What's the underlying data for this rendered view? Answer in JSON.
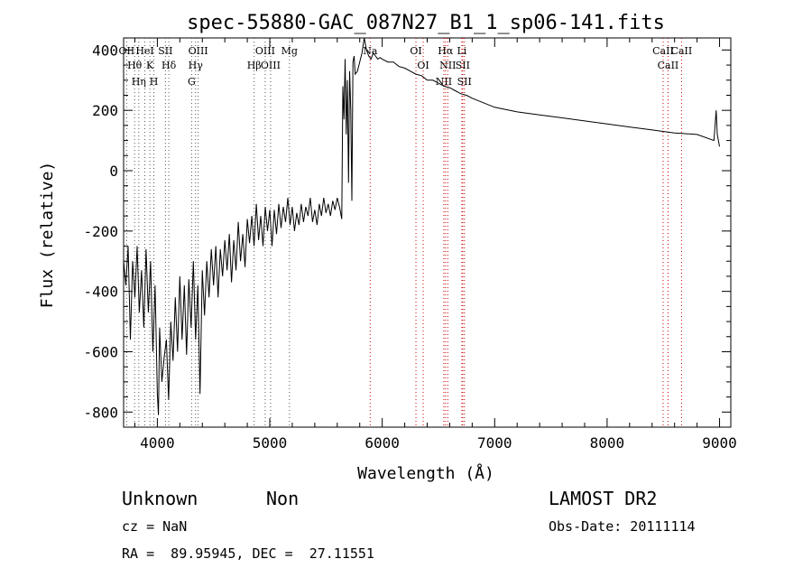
{
  "chart_data": {
    "type": "line",
    "title": "spec-55880-GAC_087N27_B1_1_sp06-141.fits",
    "xlabel": "Wavelength (Å)",
    "ylabel": "Flux (relative)",
    "xlim": [
      3700,
      9100
    ],
    "ylim": [
      -850,
      440
    ],
    "x_ticks": [
      4000,
      5000,
      6000,
      7000,
      8000,
      9000
    ],
    "y_ticks": [
      -800,
      -600,
      -400,
      -200,
      0,
      200,
      400
    ],
    "grid": false,
    "line_color": "#000000",
    "marker_color": "#cc0000",
    "series": [
      {
        "values": [
          [
            3700,
            -300
          ],
          [
            3720,
            -380
          ],
          [
            3740,
            -250
          ],
          [
            3760,
            -560
          ],
          [
            3780,
            -300
          ],
          [
            3800,
            -420
          ],
          [
            3820,
            -250
          ],
          [
            3840,
            -470
          ],
          [
            3860,
            -330
          ],
          [
            3880,
            -520
          ],
          [
            3900,
            -260
          ],
          [
            3920,
            -470
          ],
          [
            3940,
            -300
          ],
          [
            3960,
            -600
          ],
          [
            3980,
            -380
          ],
          [
            4000,
            -740
          ],
          [
            4010,
            -810
          ],
          [
            4020,
            -520
          ],
          [
            4040,
            -700
          ],
          [
            4060,
            -620
          ],
          [
            4080,
            -560
          ],
          [
            4100,
            -760
          ],
          [
            4120,
            -500
          ],
          [
            4140,
            -630
          ],
          [
            4160,
            -420
          ],
          [
            4180,
            -600
          ],
          [
            4200,
            -350
          ],
          [
            4220,
            -560
          ],
          [
            4240,
            -380
          ],
          [
            4260,
            -610
          ],
          [
            4280,
            -360
          ],
          [
            4300,
            -520
          ],
          [
            4320,
            -300
          ],
          [
            4340,
            -560
          ],
          [
            4360,
            -380
          ],
          [
            4380,
            -740
          ],
          [
            4400,
            -330
          ],
          [
            4420,
            -480
          ],
          [
            4440,
            -300
          ],
          [
            4460,
            -420
          ],
          [
            4480,
            -260
          ],
          [
            4500,
            -380
          ],
          [
            4520,
            -250
          ],
          [
            4540,
            -420
          ],
          [
            4560,
            -260
          ],
          [
            4580,
            -350
          ],
          [
            4600,
            -230
          ],
          [
            4620,
            -330
          ],
          [
            4640,
            -210
          ],
          [
            4660,
            -370
          ],
          [
            4680,
            -230
          ],
          [
            4700,
            -330
          ],
          [
            4720,
            -170
          ],
          [
            4740,
            -300
          ],
          [
            4760,
            -210
          ],
          [
            4780,
            -320
          ],
          [
            4800,
            -160
          ],
          [
            4820,
            -240
          ],
          [
            4840,
            -150
          ],
          [
            4860,
            -250
          ],
          [
            4880,
            -110
          ],
          [
            4900,
            -230
          ],
          [
            4920,
            -150
          ],
          [
            4940,
            -250
          ],
          [
            4960,
            -120
          ],
          [
            4980,
            -200
          ],
          [
            5000,
            -130
          ],
          [
            5020,
            -250
          ],
          [
            5040,
            -130
          ],
          [
            5060,
            -210
          ],
          [
            5080,
            -110
          ],
          [
            5100,
            -190
          ],
          [
            5120,
            -120
          ],
          [
            5140,
            -170
          ],
          [
            5160,
            -90
          ],
          [
            5180,
            -180
          ],
          [
            5200,
            -120
          ],
          [
            5220,
            -200
          ],
          [
            5240,
            -140
          ],
          [
            5260,
            -180
          ],
          [
            5280,
            -110
          ],
          [
            5300,
            -170
          ],
          [
            5320,
            -120
          ],
          [
            5340,
            -150
          ],
          [
            5360,
            -90
          ],
          [
            5380,
            -170
          ],
          [
            5400,
            -130
          ],
          [
            5420,
            -180
          ],
          [
            5440,
            -110
          ],
          [
            5460,
            -150
          ],
          [
            5480,
            -90
          ],
          [
            5500,
            -140
          ],
          [
            5520,
            -110
          ],
          [
            5540,
            -150
          ],
          [
            5560,
            -100
          ],
          [
            5580,
            -130
          ],
          [
            5600,
            -90
          ],
          [
            5620,
            -120
          ],
          [
            5640,
            -160
          ],
          [
            5650,
            280
          ],
          [
            5660,
            170
          ],
          [
            5670,
            370
          ],
          [
            5680,
            120
          ],
          [
            5690,
            300
          ],
          [
            5700,
            -40
          ],
          [
            5710,
            330
          ],
          [
            5720,
            200
          ],
          [
            5730,
            -100
          ],
          [
            5740,
            360
          ],
          [
            5750,
            380
          ],
          [
            5760,
            320
          ],
          [
            5780,
            330
          ],
          [
            5800,
            360
          ],
          [
            5820,
            390
          ],
          [
            5840,
            440
          ],
          [
            5860,
            400
          ],
          [
            5880,
            380
          ],
          [
            5900,
            370
          ],
          [
            5920,
            390
          ],
          [
            5940,
            380
          ],
          [
            5960,
            370
          ],
          [
            5980,
            375
          ],
          [
            6000,
            370
          ],
          [
            6050,
            360
          ],
          [
            6100,
            360
          ],
          [
            6150,
            345
          ],
          [
            6200,
            340
          ],
          [
            6250,
            330
          ],
          [
            6300,
            320
          ],
          [
            6350,
            315
          ],
          [
            6400,
            300
          ],
          [
            6450,
            300
          ],
          [
            6500,
            290
          ],
          [
            6550,
            280
          ],
          [
            6600,
            275
          ],
          [
            6650,
            265
          ],
          [
            6700,
            255
          ],
          [
            6750,
            250
          ],
          [
            6800,
            240
          ],
          [
            6900,
            225
          ],
          [
            7000,
            210
          ],
          [
            7200,
            195
          ],
          [
            7400,
            185
          ],
          [
            7600,
            175
          ],
          [
            7800,
            165
          ],
          [
            8000,
            155
          ],
          [
            8200,
            145
          ],
          [
            8400,
            135
          ],
          [
            8600,
            125
          ],
          [
            8800,
            120
          ],
          [
            8950,
            100
          ],
          [
            8970,
            200
          ],
          [
            8980,
            120
          ],
          [
            9000,
            80
          ]
        ]
      }
    ],
    "line_markers": [
      {
        "name": "OII",
        "wavelength": 3727
      },
      {
        "name": "Hθ",
        "wavelength": 3798
      },
      {
        "name": "Hη",
        "wavelength": 3835
      },
      {
        "name": "HeI",
        "wavelength": 3889
      },
      {
        "name": "K",
        "wavelength": 3934
      },
      {
        "name": "SII",
        "wavelength": 4072
      },
      {
        "name": "H",
        "wavelength": 3969
      },
      {
        "name": "Hδ",
        "wavelength": 4102
      },
      {
        "name": "OIII",
        "wavelength": 4363
      },
      {
        "name": "Hγ",
        "wavelength": 4340
      },
      {
        "name": "G",
        "wavelength": 4305
      },
      {
        "name": "OIII",
        "wavelength": 4959
      },
      {
        "name": "OIII",
        "wavelength": 5007
      },
      {
        "name": "Hβ",
        "wavelength": 4861
      },
      {
        "name": "Mg",
        "wavelength": 5175
      },
      {
        "name": "Na",
        "wavelength": 5893
      },
      {
        "name": "OI",
        "wavelength": 6300
      },
      {
        "name": "OI",
        "wavelength": 6364
      },
      {
        "name": "Hα",
        "wavelength": 6563
      },
      {
        "name": "NII",
        "wavelength": 6583
      },
      {
        "name": "Li",
        "wavelength": 6708
      },
      {
        "name": "SII",
        "wavelength": 6716
      },
      {
        "name": "NII",
        "wavelength": 6548
      },
      {
        "name": "SII",
        "wavelength": 6731
      },
      {
        "name": "CaII",
        "wavelength": 8498
      },
      {
        "name": "CaII",
        "wavelength": 8542
      },
      {
        "name": "CaII",
        "wavelength": 8662
      }
    ]
  },
  "info": {
    "object_class": "Unknown",
    "subclass": "Non",
    "survey": "LAMOST DR2",
    "cz": "cz = NaN",
    "obs_date": "Obs-Date: 20111114",
    "coords": "RA =  89.95945, DEC =  27.11551"
  }
}
